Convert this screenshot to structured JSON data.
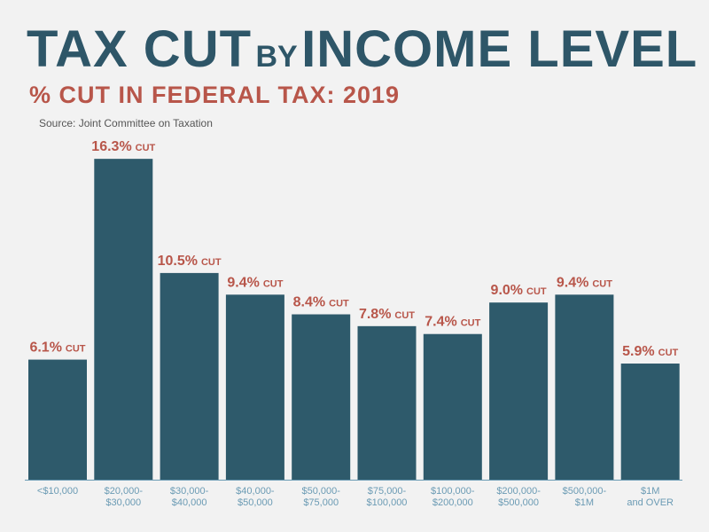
{
  "header": {
    "title_part1": "TAX CUT",
    "title_part2": "BY",
    "title_part3": "INCOME LEVEL",
    "subtitle": "% CUT IN FEDERAL TAX: 2019",
    "source": "Source: Joint Committee on Taxation"
  },
  "colors": {
    "bar": "#2e5a6b",
    "label": "#b8564a",
    "tick": "#6b9bb4",
    "title": "#2e5668"
  },
  "chart_data": {
    "type": "bar",
    "title": "TAX CUT BY INCOME LEVEL",
    "subtitle": "% CUT IN FEDERAL TAX: 2019",
    "xlabel": "",
    "ylabel": "",
    "ylim": [
      0,
      18
    ],
    "grid": false,
    "value_suffix": "CUT",
    "categories": [
      [
        "<$10,000"
      ],
      [
        "$20,000-",
        "$30,000"
      ],
      [
        "$30,000-",
        "$40,000"
      ],
      [
        "$40,000-",
        "$50,000"
      ],
      [
        "$50,000-",
        "$75,000"
      ],
      [
        "$75,000-",
        "$100,000"
      ],
      [
        "$100,000-",
        "$200,000"
      ],
      [
        "$200,000-",
        "$500,000"
      ],
      [
        "$500,000-",
        "$1M"
      ],
      [
        "$1M",
        "and OVER"
      ]
    ],
    "values": [
      6.1,
      16.3,
      10.5,
      9.4,
      8.4,
      7.8,
      7.4,
      9.0,
      9.4,
      5.9
    ],
    "value_labels": [
      "6.1%",
      "16.3%",
      "10.5%",
      "9.4%",
      "8.4%",
      "7.8%",
      "7.4%",
      "9.0%",
      "9.4%",
      "5.9%"
    ]
  }
}
